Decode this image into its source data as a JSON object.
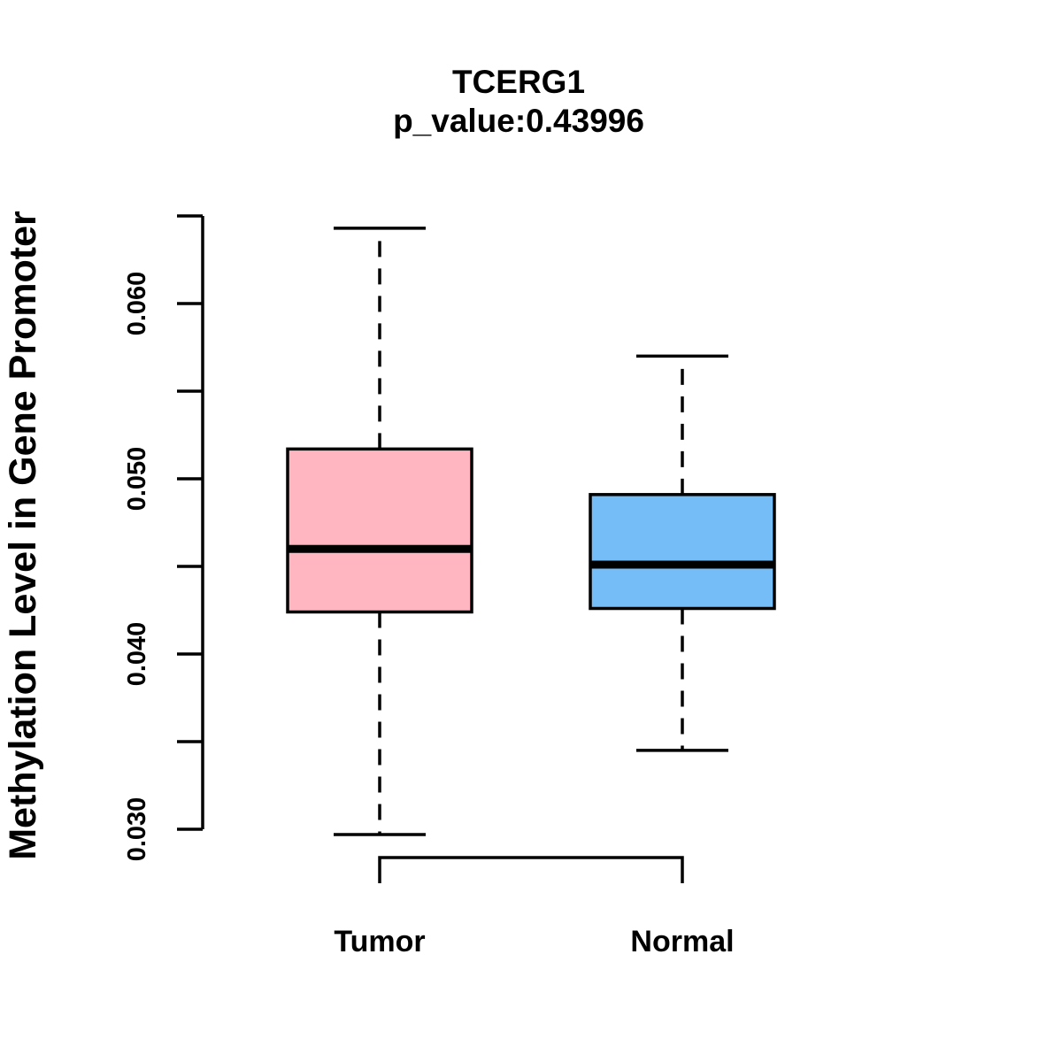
{
  "chart_data": {
    "type": "boxplot",
    "title": "TCERG1",
    "subtitle": "p_value:0.43996",
    "ylabel": "Methylation Level in Gene Promoter",
    "xlabel": "",
    "categories": [
      "Tumor",
      "Normal"
    ],
    "series": [
      {
        "name": "Tumor",
        "color": "#FFB6C1",
        "whisker_low": 0.0297,
        "q1": 0.0424,
        "median": 0.046,
        "q3": 0.0517,
        "whisker_high": 0.0643
      },
      {
        "name": "Normal",
        "color": "#74BDF7",
        "whisker_low": 0.0345,
        "q1": 0.0426,
        "median": 0.0451,
        "q3": 0.0491,
        "whisker_high": 0.057
      }
    ],
    "y_axis": {
      "range": [
        0.03,
        0.065
      ],
      "ticks": [
        0.03,
        0.035,
        0.04,
        0.045,
        0.05,
        0.055,
        0.06,
        0.065
      ],
      "labeled_ticks": [
        0.03,
        0.04,
        0.05,
        0.06
      ],
      "tick_label_decimals": 3
    },
    "layout_hints": {
      "grid": "off",
      "legend": "none",
      "whisker_style": "dashed",
      "box_border_color": "#000000",
      "median_color": "#000000",
      "background": "#FFFFFF"
    }
  }
}
